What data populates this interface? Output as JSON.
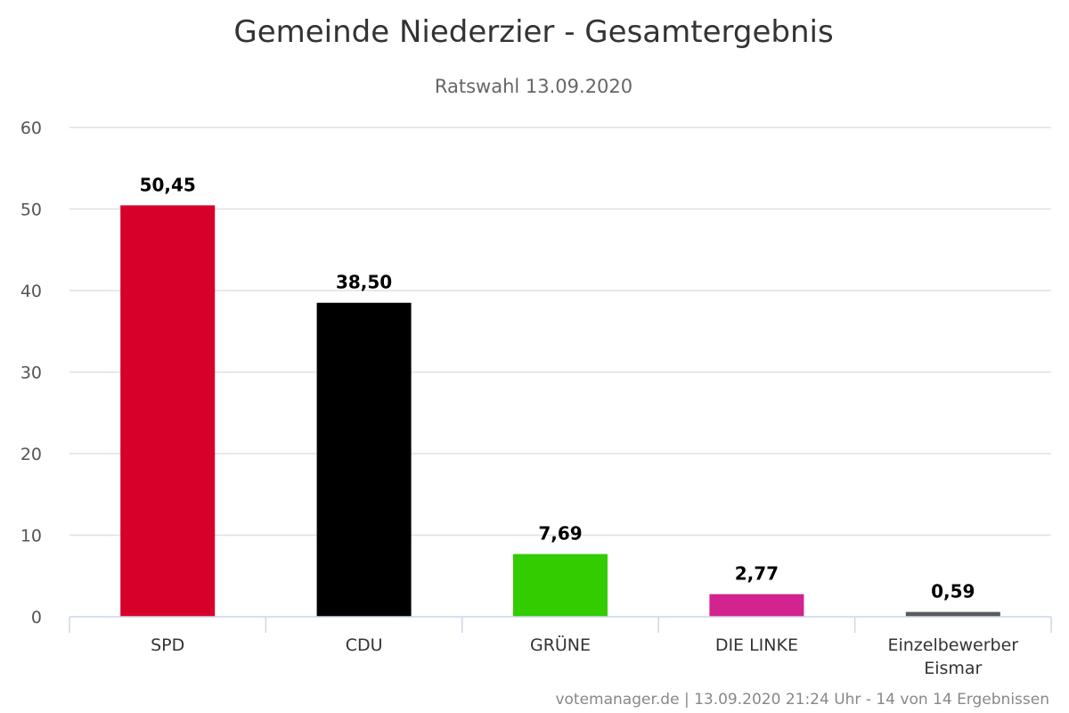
{
  "chart_data": {
    "type": "bar",
    "title": "Gemeinde Niederzier - Gesamtergebnis",
    "subtitle": "Ratswahl 13.09.2020",
    "categories": [
      [
        "SPD"
      ],
      [
        "CDU"
      ],
      [
        "GRÜNE"
      ],
      [
        "DIE LINKE"
      ],
      [
        "Einzelbewerber",
        "Eismar"
      ]
    ],
    "values": [
      50.45,
      38.5,
      7.69,
      2.77,
      0.59
    ],
    "value_labels": [
      "50,45",
      "38,50",
      "7,69",
      "2,77",
      "0,59"
    ],
    "colors": [
      "#d7002a",
      "#000000",
      "#33cc00",
      "#d2238f",
      "#5a5a5a"
    ],
    "ylim": [
      0,
      60
    ],
    "yticks": [
      0,
      10,
      20,
      30,
      40,
      50,
      60
    ],
    "grid": true,
    "legend": false,
    "xlabel": "",
    "ylabel": ""
  },
  "credits": "votemanager.de | 13.09.2020 21:24 Uhr - 14 von 14 Ergebnissen"
}
